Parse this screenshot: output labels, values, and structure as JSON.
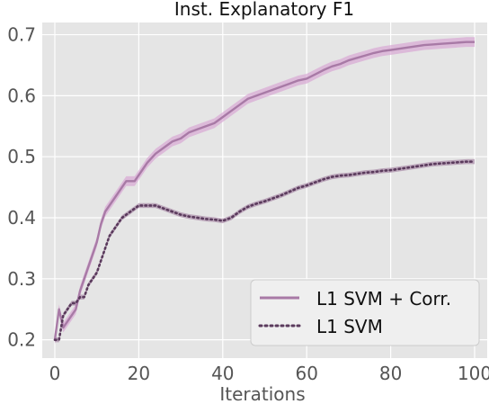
{
  "chart_data": {
    "type": "line",
    "title": "Inst. Explanatory F1",
    "xlabel": "Iterations",
    "ylabel": "",
    "xlim": [
      -3,
      103
    ],
    "ylim": [
      0.17,
      0.72
    ],
    "xticks": [
      0,
      20,
      40,
      60,
      80,
      100
    ],
    "yticks": [
      0.2,
      0.3,
      0.4,
      0.5,
      0.6,
      0.7
    ],
    "tick_labels": {
      "x": [
        "0",
        "20",
        "40",
        "60",
        "80",
        "100"
      ],
      "y": [
        "0.2",
        "0.3",
        "0.4",
        "0.5",
        "0.6",
        "0.7"
      ]
    },
    "grid": true,
    "legend_position": "bottom-right",
    "series": [
      {
        "name": "L1 SVM + Corr.",
        "style": "solid",
        "color": "#a87aa6",
        "band_color": "#d9a8d4",
        "x": [
          0,
          1,
          2,
          3,
          4,
          5,
          6,
          7,
          8,
          9,
          10,
          11,
          12,
          13,
          14,
          15,
          16,
          17,
          18,
          19,
          20,
          22,
          24,
          26,
          28,
          30,
          32,
          34,
          36,
          38,
          40,
          42,
          44,
          46,
          48,
          50,
          52,
          54,
          56,
          58,
          60,
          62,
          64,
          66,
          68,
          70,
          72,
          74,
          76,
          78,
          80,
          82,
          84,
          86,
          88,
          90,
          92,
          94,
          96,
          98,
          100
        ],
        "y": [
          0.2,
          0.25,
          0.22,
          0.23,
          0.24,
          0.25,
          0.28,
          0.3,
          0.32,
          0.34,
          0.36,
          0.39,
          0.41,
          0.42,
          0.43,
          0.44,
          0.45,
          0.46,
          0.46,
          0.46,
          0.47,
          0.49,
          0.505,
          0.515,
          0.525,
          0.53,
          0.54,
          0.545,
          0.55,
          0.555,
          0.565,
          0.575,
          0.585,
          0.595,
          0.6,
          0.605,
          0.61,
          0.615,
          0.62,
          0.625,
          0.628,
          0.635,
          0.642,
          0.648,
          0.652,
          0.658,
          0.662,
          0.666,
          0.67,
          0.673,
          0.675,
          0.677,
          0.679,
          0.681,
          0.683,
          0.684,
          0.685,
          0.686,
          0.687,
          0.688,
          0.688
        ],
        "band": 0.008
      },
      {
        "name": "L1 SVM",
        "style": "dotted",
        "color": "#5a3a5c",
        "band_color": "#a98ba8",
        "x": [
          0,
          1,
          2,
          3,
          4,
          5,
          6,
          7,
          8,
          9,
          10,
          11,
          12,
          13,
          14,
          15,
          16,
          17,
          18,
          19,
          20,
          22,
          24,
          26,
          28,
          30,
          32,
          34,
          36,
          38,
          40,
          42,
          44,
          46,
          48,
          50,
          52,
          54,
          56,
          58,
          60,
          62,
          64,
          66,
          68,
          70,
          72,
          74,
          76,
          78,
          80,
          82,
          84,
          86,
          88,
          90,
          92,
          94,
          96,
          98,
          100
        ],
        "y": [
          0.2,
          0.2,
          0.24,
          0.25,
          0.26,
          0.26,
          0.27,
          0.27,
          0.29,
          0.3,
          0.31,
          0.33,
          0.35,
          0.37,
          0.38,
          0.39,
          0.4,
          0.405,
          0.41,
          0.415,
          0.42,
          0.42,
          0.42,
          0.415,
          0.41,
          0.405,
          0.402,
          0.4,
          0.398,
          0.397,
          0.395,
          0.4,
          0.41,
          0.418,
          0.423,
          0.427,
          0.432,
          0.437,
          0.443,
          0.449,
          0.453,
          0.458,
          0.463,
          0.467,
          0.469,
          0.47,
          0.472,
          0.474,
          0.475,
          0.477,
          0.478,
          0.48,
          0.482,
          0.484,
          0.486,
          0.488,
          0.489,
          0.49,
          0.491,
          0.492,
          0.492
        ],
        "band": 0.004
      }
    ]
  }
}
